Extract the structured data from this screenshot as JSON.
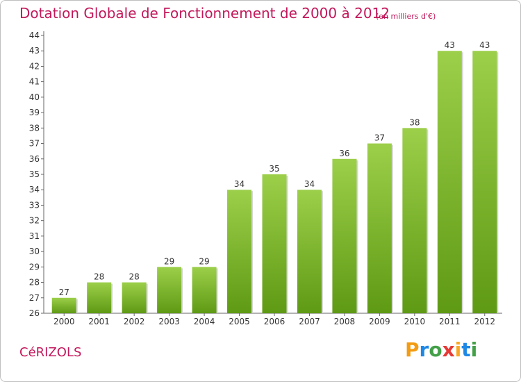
{
  "title": "Dotation Globale de Fonctionnement de 2000 à 2012",
  "subtitle": "(en milliers d'€)",
  "commune": "CéRIZOLS",
  "logo": {
    "letters": [
      "P",
      "r",
      "o",
      "x",
      "i",
      "t",
      "i"
    ],
    "colors": [
      "#f39c12",
      "#1e88e5",
      "#43a047",
      "#e53935",
      "#f9a825",
      "#1e88e5",
      "#43a047"
    ]
  },
  "chart_data": {
    "type": "bar",
    "categories": [
      "2000",
      "2001",
      "2002",
      "2003",
      "2004",
      "2005",
      "2006",
      "2007",
      "2008",
      "2009",
      "2010",
      "2011",
      "2012"
    ],
    "values": [
      27,
      28,
      28,
      29,
      29,
      34,
      35,
      34,
      36,
      37,
      38,
      43,
      43
    ],
    "ylim": [
      26,
      44
    ],
    "yticks": [
      26,
      27,
      28,
      29,
      30,
      31,
      32,
      33,
      34,
      35,
      36,
      37,
      38,
      39,
      40,
      41,
      42,
      43,
      44
    ],
    "grid": false,
    "bar_color_top": "#9ccf4a",
    "bar_color_bottom": "#5f9a14"
  }
}
